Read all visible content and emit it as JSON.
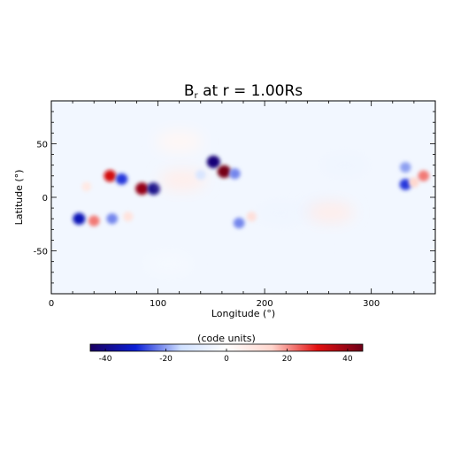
{
  "chart_data": {
    "type": "heatmap",
    "title_main": "B",
    "title_sub": "r",
    "title_rest": " at r = 1.00Rs",
    "xlabel": "Longitude (°)",
    "ylabel": "Latitude (°)",
    "xlim": [
      0,
      360
    ],
    "ylim": [
      -90,
      90
    ],
    "xticks": [
      0,
      100,
      200,
      300
    ],
    "yticks": [
      -50,
      0,
      50
    ],
    "colorbar": {
      "label": "(code units)",
      "range": [
        -45,
        45
      ],
      "ticks": [
        -40,
        -20,
        0,
        20,
        40
      ],
      "colors": [
        "#1a0060",
        "#0b1fd6",
        "#cfe0ff",
        "#ffffff",
        "#ffd5cc",
        "#e31010",
        "#6e0018"
      ]
    },
    "background_level": -4,
    "features": [
      {
        "lon": 55,
        "lat": 20,
        "value": 32
      },
      {
        "lon": 66,
        "lat": 17,
        "value": -28
      },
      {
        "lon": 33,
        "lat": 10,
        "value": 8
      },
      {
        "lon": 85,
        "lat": 8,
        "value": 40
      },
      {
        "lon": 96,
        "lat": 8,
        "value": -40
      },
      {
        "lon": 123,
        "lat": 16,
        "value": 6
      },
      {
        "lon": 152,
        "lat": 33,
        "value": -42
      },
      {
        "lon": 162,
        "lat": 24,
        "value": 44
      },
      {
        "lon": 172,
        "lat": 22,
        "value": -22
      },
      {
        "lon": 140,
        "lat": 21,
        "value": -12
      },
      {
        "lon": 26,
        "lat": -20,
        "value": -34
      },
      {
        "lon": 40,
        "lat": -22,
        "value": 22
      },
      {
        "lon": 57,
        "lat": -20,
        "value": -22
      },
      {
        "lon": 72,
        "lat": -18,
        "value": 10
      },
      {
        "lon": 188,
        "lat": -18,
        "value": 12
      },
      {
        "lon": 176,
        "lat": -24,
        "value": -22
      },
      {
        "lon": 215,
        "lat": -15,
        "value": -5
      },
      {
        "lon": 255,
        "lat": -12,
        "value": -6
      },
      {
        "lon": 262,
        "lat": -14,
        "value": 6
      },
      {
        "lon": 120,
        "lat": 52,
        "value": 3
      },
      {
        "lon": 275,
        "lat": 30,
        "value": -5
      },
      {
        "lon": 332,
        "lat": 12,
        "value": -28
      },
      {
        "lon": 332,
        "lat": 28,
        "value": -20
      },
      {
        "lon": 340,
        "lat": 14,
        "value": 14
      },
      {
        "lon": 349,
        "lat": 20,
        "value": 22
      },
      {
        "lon": 110,
        "lat": -62,
        "value": -3
      },
      {
        "lon": 230,
        "lat": -48,
        "value": -4
      }
    ]
  }
}
